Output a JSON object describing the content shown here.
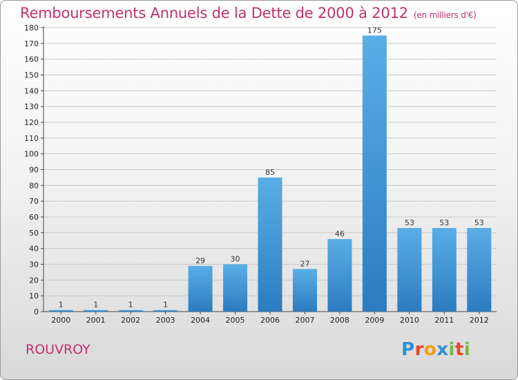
{
  "title": "Remboursements Annuels de la Dette de 2000 à 2012",
  "unit_note": "(en milliers d'€)",
  "commune": "ROUVROY",
  "logo": {
    "letters": [
      "P",
      "r",
      "o",
      "x",
      "i",
      "t",
      "i"
    ],
    "colors": [
      "#2b8fd6",
      "#e8452a",
      "#f39c12",
      "#2b8fd6",
      "#7ab648",
      "#e8452a",
      "#7ab648"
    ]
  },
  "colors": {
    "bar_top": "#5aaee6",
    "bar_bottom": "#2b7cc0",
    "title": "#c0306f",
    "grid": "#c8c8c8"
  },
  "chart_data": {
    "type": "bar",
    "categories": [
      "2000",
      "2001",
      "2002",
      "2003",
      "2004",
      "2005",
      "2006",
      "2007",
      "2008",
      "2009",
      "2010",
      "2011",
      "2012"
    ],
    "values": [
      1,
      1,
      1,
      1,
      29,
      30,
      85,
      27,
      46,
      175,
      53,
      53,
      53
    ],
    "ylim": [
      0,
      180
    ],
    "ytick_step": 10,
    "grid": true
  }
}
